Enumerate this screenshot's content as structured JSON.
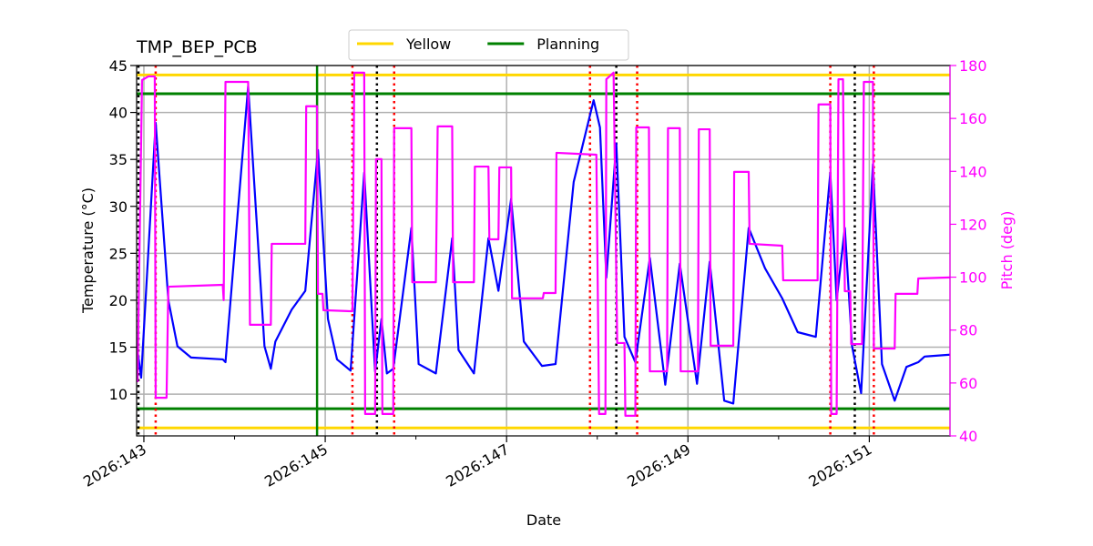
{
  "chart_data": {
    "type": "line",
    "title": "TMP_BEP_PCB",
    "xlabel": "Date",
    "ylabel": "Temperature (°C)",
    "y2label": "Pitch (deg)",
    "y2color": "#ff00ff",
    "xlim": [
      142.92,
      151.89
    ],
    "xticks": [
      {
        "value": 143,
        "label": "2026:143"
      },
      {
        "value": 145,
        "label": "2026:145"
      },
      {
        "value": 147,
        "label": "2026:147"
      },
      {
        "value": 149,
        "label": "2026:149"
      },
      {
        "value": 151,
        "label": "2026:151"
      }
    ],
    "xminorticks": [
      144,
      146,
      148,
      150
    ],
    "ylim": [
      5.55,
      45
    ],
    "yticks": [
      10,
      15,
      20,
      25,
      30,
      35,
      40,
      45
    ],
    "y2lim": [
      40,
      180
    ],
    "y2ticks": [
      40,
      60,
      80,
      100,
      120,
      140,
      160,
      180
    ],
    "grid": true,
    "legend": "upper center",
    "limits": [
      {
        "name": "Yellow",
        "color": "#ffd700",
        "values": [
          44,
          6.4
        ]
      },
      {
        "name": "Planning",
        "color": "#008000",
        "values": [
          42,
          8.45
        ]
      }
    ],
    "vlines": [
      {
        "color": "#008000",
        "style": "solid",
        "x": [
          144.91
        ]
      },
      {
        "color": "#ff0000",
        "style": "dotted",
        "x": [
          143.13,
          145.3,
          145.76,
          147.92,
          148.44,
          150.57,
          151.05
        ]
      },
      {
        "color": "#000000",
        "style": "dotted",
        "x": [
          142.94,
          145.57,
          148.21,
          150.84
        ]
      }
    ],
    "series": [
      {
        "color": "#0000ff",
        "axis": "y",
        "x": [
          142.93,
          142.97,
          143.13,
          143.27,
          143.37,
          143.52,
          143.87,
          143.9,
          144.15,
          144.33,
          144.4,
          144.45,
          144.63,
          144.78,
          144.92,
          145.03,
          145.13,
          145.28,
          145.43,
          145.55,
          145.62,
          145.68,
          145.75,
          145.95,
          146.03,
          146.22,
          146.4,
          146.47,
          146.64,
          146.8,
          146.91,
          147.05,
          147.19,
          147.39,
          147.54,
          147.74,
          147.96,
          148.03,
          148.1,
          148.21,
          148.3,
          148.42,
          148.58,
          148.75,
          148.91,
          149.1,
          149.24,
          149.4,
          149.5,
          149.67,
          149.85,
          150.04,
          150.21,
          150.41,
          150.57,
          150.64,
          150.73,
          150.81,
          150.91,
          151.04,
          151.14,
          151.28,
          151.41,
          151.54,
          151.61,
          151.89
        ],
        "values": [
          14.65,
          11.75,
          38.9,
          20.0,
          15.1,
          13.9,
          13.7,
          13.4,
          42.8,
          15.1,
          12.7,
          15.6,
          19.0,
          21.0,
          36.0,
          18.0,
          13.7,
          12.5,
          33.6,
          12.4,
          18.0,
          12.2,
          12.7,
          27.7,
          13.2,
          12.2,
          26.6,
          14.7,
          12.2,
          26.6,
          21.0,
          30.8,
          15.6,
          13.0,
          13.2,
          32.6,
          41.3,
          38.4,
          22.4,
          36.7,
          16.1,
          13.4,
          24.5,
          11.0,
          23.9,
          11.1,
          24.1,
          9.3,
          9.0,
          27.7,
          23.4,
          20.2,
          16.6,
          16.1,
          33.6,
          20.0,
          27.7,
          15.1,
          10.1,
          34.5,
          13.2,
          9.3,
          12.9,
          13.4,
          14.0,
          14.2
        ]
      },
      {
        "color": "#ff00ff",
        "axis": "y2",
        "x": [
          142.93,
          142.98,
          143.05,
          143.12,
          143.13,
          143.25,
          143.27,
          143.87,
          143.88,
          143.9,
          144.15,
          144.17,
          144.4,
          144.41,
          144.78,
          144.79,
          144.91,
          144.92,
          144.97,
          144.98,
          145.3,
          145.32,
          145.43,
          145.44,
          145.55,
          145.56,
          145.62,
          145.63,
          145.75,
          145.76,
          145.95,
          145.96,
          146.22,
          146.24,
          146.4,
          146.41,
          146.64,
          146.65,
          146.8,
          146.81,
          146.91,
          146.92,
          147.05,
          147.06,
          147.4,
          147.41,
          147.54,
          147.55,
          147.99,
          148.02,
          148.09,
          148.1,
          148.18,
          148.22,
          148.3,
          148.31,
          148.42,
          148.43,
          148.57,
          148.58,
          148.77,
          148.78,
          148.91,
          148.92,
          149.11,
          149.12,
          149.24,
          149.25,
          149.5,
          149.51,
          149.67,
          149.68,
          150.04,
          150.05,
          150.43,
          150.44,
          150.57,
          150.58,
          150.64,
          150.66,
          150.71,
          150.73,
          150.79,
          150.8,
          150.92,
          150.94,
          151.04,
          151.05,
          151.28,
          151.29,
          151.53,
          151.54,
          151.89
        ],
        "values": [
          60.3,
          174.5,
          175.9,
          175.9,
          54.4,
          54.4,
          96.4,
          97.1,
          91.3,
          173.8,
          173.8,
          82.0,
          82.0,
          112.6,
          112.6,
          164.6,
          164.6,
          93.7,
          93.7,
          87.5,
          87.1,
          177.3,
          177.3,
          48.3,
          48.3,
          144.6,
          144.6,
          48.3,
          48.3,
          156.3,
          156.3,
          98.1,
          98.1,
          157.0,
          157.0,
          98.1,
          98.1,
          141.8,
          141.8,
          114.3,
          114.3,
          141.5,
          141.5,
          92.0,
          92.0,
          94.0,
          94.0,
          147.0,
          146.3,
          48.3,
          48.3,
          174.8,
          177.3,
          75.1,
          75.1,
          47.6,
          47.6,
          156.6,
          156.6,
          64.4,
          64.4,
          156.3,
          156.3,
          64.4,
          64.4,
          155.9,
          155.9,
          74.1,
          74.1,
          139.8,
          139.8,
          112.6,
          111.9,
          98.8,
          98.8,
          165.3,
          165.3,
          48.3,
          48.3,
          174.8,
          174.8,
          94.7,
          94.7,
          74.7,
          74.7,
          173.8,
          173.8,
          73.0,
          73.0,
          93.7,
          93.7,
          99.5,
          99.9
        ]
      }
    ]
  }
}
